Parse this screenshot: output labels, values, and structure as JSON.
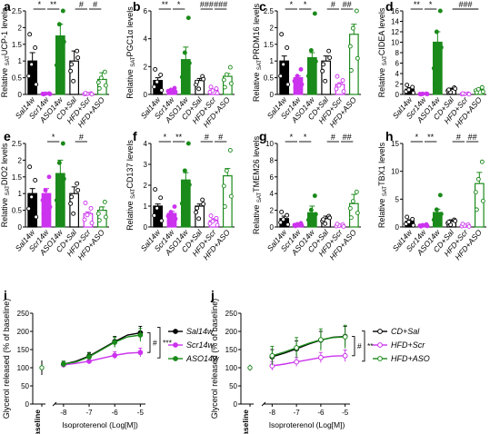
{
  "colors": {
    "black": "#000000",
    "purple": "#cc33ee",
    "green": "#1a8a1a",
    "gray": "#888888"
  },
  "chart_data": [
    {
      "panel": "a",
      "type": "bar",
      "ylabel": "Relative SAT UCP-1 levels",
      "ymax": 2.5,
      "ticks": [
        0,
        0.5,
        1.0,
        1.5,
        2.0,
        2.5
      ],
      "categories": [
        "Sal14w",
        "Scr14w",
        "ASO14w",
        "CD+Sal",
        "HFD+Scr",
        "HFD+ASO"
      ],
      "values": [
        1.0,
        0.02,
        1.75,
        1.0,
        0.02,
        0.45
      ],
      "errors": [
        0.25,
        0.02,
        0.35,
        0.3,
        0.03,
        0.2
      ],
      "sig": [
        {
          "from": 0,
          "to": 1,
          "label": "*"
        },
        {
          "from": 1,
          "to": 2,
          "label": "**"
        },
        {
          "from": 3,
          "to": 4,
          "label": "#"
        },
        {
          "from": 4,
          "to": 5,
          "label": "#"
        }
      ]
    },
    {
      "panel": "b",
      "type": "bar",
      "ylabel": "Relative SAT PGC1α levels",
      "ymax": 6,
      "ticks": [
        0,
        2,
        4,
        6
      ],
      "categories": [
        "Sal14w",
        "Scr14w",
        "ASO14w",
        "CD+Sal",
        "HFD+Scr",
        "HFD+ASO"
      ],
      "values": [
        1.0,
        0.3,
        2.5,
        1.0,
        0.3,
        1.3
      ],
      "errors": [
        0.2,
        0.1,
        0.9,
        0.15,
        0.05,
        0.2
      ],
      "sig": [
        {
          "from": 0,
          "to": 1,
          "label": "**"
        },
        {
          "from": 1,
          "to": 2,
          "label": "*"
        },
        {
          "from": 3,
          "to": 4,
          "label": "###"
        },
        {
          "from": 4,
          "to": 5,
          "label": "###"
        }
      ]
    },
    {
      "panel": "c",
      "type": "bar",
      "ylabel": "Relative SAT PRDM16 levels",
      "ymax": 2.5,
      "ticks": [
        0.0,
        0.5,
        1.0,
        1.5,
        2.0,
        2.5
      ],
      "categories": [
        "Sal14w",
        "Scr14w",
        "ASO14w",
        "CD+Sal",
        "HFD+Scr",
        "HFD+ASO"
      ],
      "values": [
        1.0,
        0.5,
        1.1,
        1.0,
        0.3,
        1.8
      ],
      "errors": [
        0.15,
        0.05,
        0.15,
        0.15,
        0.05,
        0.3
      ],
      "sig": [
        {
          "from": 0,
          "to": 1,
          "label": "*"
        },
        {
          "from": 1,
          "to": 2,
          "label": "*"
        },
        {
          "from": 3,
          "to": 4,
          "label": "#"
        },
        {
          "from": 4,
          "to": 5,
          "label": "##"
        }
      ]
    },
    {
      "panel": "d",
      "type": "bar",
      "ylabel": "Relative SAT CIDEA levels",
      "ymax": 16,
      "ticks": [
        0,
        2,
        4,
        6,
        8,
        10,
        12,
        14,
        16
      ],
      "categories": [
        "Sal14w",
        "Scr14w",
        "ASO14w",
        "CD+Sal",
        "HFD+Scr",
        "HFD+ASO"
      ],
      "values": [
        1.0,
        0.1,
        10.0,
        1.0,
        0.1,
        0.9
      ],
      "errors": [
        0.3,
        0.05,
        2.0,
        0.2,
        0.05,
        0.15
      ],
      "sig": [
        {
          "from": 0,
          "to": 1,
          "label": "**"
        },
        {
          "from": 1,
          "to": 2,
          "label": "*"
        },
        {
          "from": 3,
          "to": 5,
          "label": "###"
        }
      ]
    },
    {
      "panel": "e",
      "type": "bar",
      "ylabel": "Relative SAT DIO2 levels",
      "ymax": 2.5,
      "ticks": [
        0.0,
        0.5,
        1.0,
        1.5,
        2.0,
        2.5
      ],
      "categories": [
        "Sal14w",
        "Scr14w",
        "ASO14w",
        "CD+Sal",
        "HFD+Scr",
        "HFD+ASO"
      ],
      "values": [
        1.0,
        1.0,
        1.6,
        1.0,
        0.4,
        0.5
      ],
      "errors": [
        0.15,
        0.15,
        0.4,
        0.2,
        0.05,
        0.1
      ],
      "sig": [
        {
          "from": 1,
          "to": 2,
          "label": "*"
        },
        {
          "from": 3,
          "to": 4,
          "label": "#"
        }
      ]
    },
    {
      "panel": "f",
      "type": "bar",
      "ylabel": "Relative SAT CD137 levels",
      "ymax": 4,
      "ticks": [
        0,
        1,
        2,
        3,
        4
      ],
      "categories": [
        "Sal14w",
        "Scr14w",
        "ASO14w",
        "CD+Sal",
        "HFD+Scr",
        "HFD+ASO"
      ],
      "values": [
        1.0,
        0.65,
        2.25,
        1.0,
        0.3,
        2.45
      ],
      "errors": [
        0.1,
        0.1,
        0.35,
        0.1,
        0.1,
        0.35
      ],
      "sig": [
        {
          "from": 0,
          "to": 1,
          "label": "*"
        },
        {
          "from": 1,
          "to": 2,
          "label": "**"
        },
        {
          "from": 3,
          "to": 4,
          "label": "#"
        },
        {
          "from": 4,
          "to": 5,
          "label": "#"
        }
      ]
    },
    {
      "panel": "g",
      "type": "bar",
      "ylabel": "Relative SAT TMEM26 levels",
      "ymax": 10,
      "ticks": [
        0,
        2,
        4,
        6,
        8,
        10
      ],
      "categories": [
        "Sal14w",
        "Scr14w",
        "ASO14w",
        "CD+Sal",
        "HFD+Scr",
        "HFD+ASO"
      ],
      "values": [
        1.0,
        0.3,
        1.7,
        1.0,
        0.2,
        2.8
      ],
      "errors": [
        0.3,
        0.1,
        0.8,
        0.3,
        0.05,
        1.1
      ],
      "sig": [
        {
          "from": 0,
          "to": 1,
          "label": "*"
        },
        {
          "from": 1,
          "to": 2,
          "label": "*"
        },
        {
          "from": 3,
          "to": 4,
          "label": "#"
        },
        {
          "from": 4,
          "to": 5,
          "label": "##"
        }
      ]
    },
    {
      "panel": "h",
      "type": "bar",
      "ylabel": "Relative SAT TBX1 levels",
      "ymax": 15,
      "ticks": [
        0,
        5,
        10,
        15
      ],
      "categories": [
        "Sal14w",
        "Scr14w",
        "ASO14w",
        "CD+Sal",
        "HFD+Scr",
        "HFD+ASO"
      ],
      "values": [
        1.0,
        0.3,
        2.6,
        1.0,
        0.3,
        7.8
      ],
      "errors": [
        0.3,
        0.1,
        0.6,
        0.3,
        0.1,
        2.0
      ],
      "sig": [
        {
          "from": 0,
          "to": 1,
          "label": "*"
        },
        {
          "from": 1,
          "to": 2,
          "label": "**"
        },
        {
          "from": 3,
          "to": 4,
          "label": "#"
        },
        {
          "from": 4,
          "to": 5,
          "label": "##"
        }
      ]
    },
    {
      "panel": "i",
      "type": "line",
      "ylabel": "Glycerol released (% of baseline)",
      "xlabel": "Isoproterenol (Log[M])",
      "baseline_label": "Baseline",
      "ylim": [
        0,
        250
      ],
      "yticks": [
        0,
        50,
        100,
        150,
        200,
        250
      ],
      "xticks": [
        -8,
        -7,
        -6,
        -5
      ],
      "xlim": [
        -8.35,
        -4.8
      ],
      "baseline_value": 100,
      "baseline_error": 20,
      "x": [
        -8,
        -7.5,
        -7,
        -6.5,
        -6,
        -5.5,
        -5
      ],
      "series": [
        {
          "name": "Sal14w",
          "style": "filled-black",
          "values": [
            110,
            118,
            132,
            152,
            172,
            190,
            196
          ],
          "errors": [
            8,
            8,
            10,
            12,
            14,
            16,
            18
          ]
        },
        {
          "name": "Scr14w",
          "style": "filled-purple",
          "values": [
            108,
            112,
            118,
            126,
            134,
            140,
            142
          ],
          "errors": [
            7,
            7,
            8,
            8,
            10,
            10,
            12
          ]
        },
        {
          "name": "ASO14w",
          "style": "filled-green",
          "values": [
            110,
            116,
            130,
            150,
            170,
            185,
            190
          ],
          "errors": [
            8,
            8,
            10,
            12,
            14,
            16,
            18
          ]
        }
      ],
      "sig_labels": [
        "#",
        "***"
      ]
    },
    {
      "panel": "j",
      "type": "line",
      "ylabel": "Glycerol released (% of baseline)",
      "xlabel": "Isoproterenol (Log[M])",
      "baseline_label": "Baseline",
      "ylim": [
        0,
        250
      ],
      "yticks": [
        0,
        50,
        100,
        150,
        200,
        250
      ],
      "xticks": [
        -8,
        -7,
        -6,
        -5
      ],
      "xlim": [
        -8.35,
        -4.8
      ],
      "baseline_value": 100,
      "baseline_error": 8,
      "x": [
        -8,
        -7.5,
        -7,
        -6.5,
        -6,
        -5.5,
        -5
      ],
      "series": [
        {
          "name": "CD+Sal",
          "style": "open-black",
          "values": [
            130,
            140,
            152,
            165,
            176,
            184,
            186
          ],
          "errors": [
            20,
            22,
            22,
            24,
            24,
            26,
            28
          ]
        },
        {
          "name": "HFD+Scr",
          "style": "open-purple",
          "values": [
            105,
            110,
            116,
            122,
            128,
            132,
            133
          ],
          "errors": [
            12,
            12,
            12,
            14,
            14,
            16,
            16
          ]
        },
        {
          "name": "HFD+ASO",
          "style": "open-green",
          "values": [
            133,
            143,
            155,
            167,
            177,
            183,
            185
          ],
          "errors": [
            26,
            26,
            28,
            28,
            30,
            30,
            32
          ]
        }
      ],
      "sig_labels": [
        "#",
        "**"
      ]
    }
  ]
}
